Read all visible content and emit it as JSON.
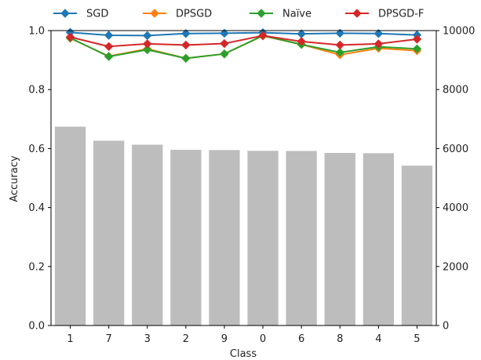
{
  "chart_data": {
    "type": "bar+line",
    "xlabel": "Class",
    "ylabel": "Accuracy",
    "categories": [
      "1",
      "7",
      "3",
      "2",
      "9",
      "0",
      "6",
      "8",
      "4",
      "5"
    ],
    "ylim": [
      0.0,
      1.0
    ],
    "yticks": [
      "0.0",
      "0.2",
      "0.4",
      "0.6",
      "0.8",
      "1.0"
    ],
    "y2lim": [
      0,
      10000
    ],
    "y2ticks": [
      "0",
      "2000",
      "4000",
      "6000",
      "8000",
      "10000"
    ],
    "legend_position": "top",
    "bars": {
      "axis": "right",
      "color": "#bdbdbd",
      "values": [
        6742,
        6265,
        6131,
        5958,
        5949,
        5923,
        5918,
        5851,
        5842,
        5421
      ]
    },
    "series": [
      {
        "name": "SGD",
        "color": "#1f77b4",
        "values": [
          0.994,
          0.984,
          0.983,
          0.99,
          0.991,
          0.993,
          0.989,
          0.991,
          0.99,
          0.985
        ]
      },
      {
        "name": "DPSGD",
        "color": "#ff7f0e",
        "values": [
          0.974,
          0.913,
          0.938,
          0.906,
          0.921,
          0.982,
          0.953,
          0.918,
          0.94,
          0.932
        ]
      },
      {
        "name": "Naïve",
        "color": "#2ca02c",
        "values": [
          0.975,
          0.912,
          0.935,
          0.906,
          0.921,
          0.983,
          0.953,
          0.926,
          0.945,
          0.938
        ]
      },
      {
        "name": "DPSGD-F",
        "color": "#d62728",
        "values": [
          0.978,
          0.946,
          0.955,
          0.951,
          0.956,
          0.983,
          0.963,
          0.951,
          0.955,
          0.971
        ]
      }
    ]
  }
}
